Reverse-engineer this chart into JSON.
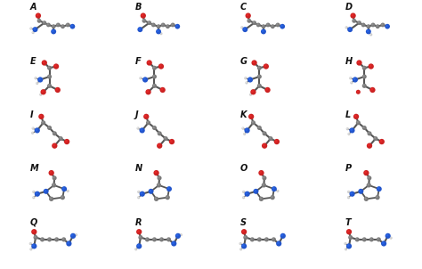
{
  "labels": [
    "A",
    "B",
    "C",
    "D",
    "E",
    "F",
    "G",
    "H",
    "I",
    "J",
    "K",
    "L",
    "M",
    "N",
    "O",
    "P",
    "Q",
    "R",
    "S",
    "T"
  ],
  "nrows": 5,
  "ncols": 4,
  "background_color": "#ffffff",
  "label_fontsize": 7,
  "label_color": "#111111",
  "label_weight": "bold",
  "figsize": [
    4.74,
    3.02
  ],
  "dpi": 100,
  "atom_colors": {
    "C": "#7a7a7a",
    "N": "#2255cc",
    "O": "#cc2222",
    "H": "#cccccc",
    "S": "#bbbb00",
    "bond": "#555555"
  }
}
